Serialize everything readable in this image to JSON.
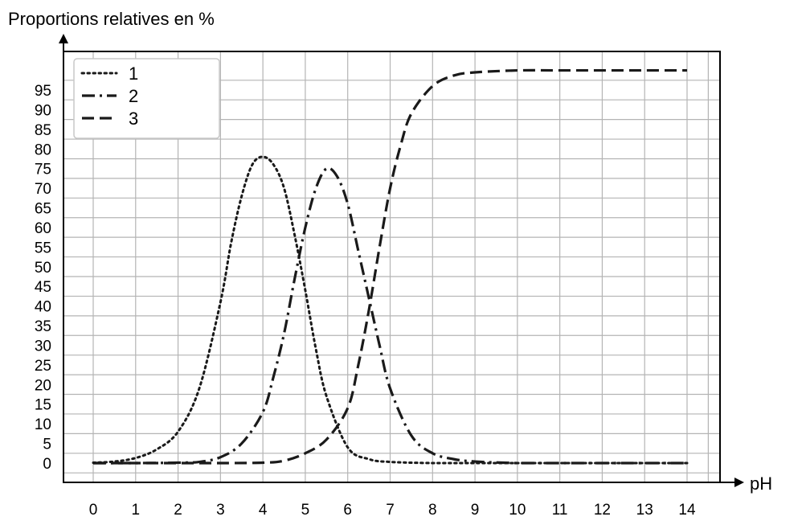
{
  "chart_data": {
    "type": "line",
    "title": "",
    "ylabel": "Proportions relatives en %",
    "xlabel": "pH",
    "xlim": [
      0,
      14
    ],
    "ylim": [
      0,
      100
    ],
    "x_ticks": [
      0,
      1,
      2,
      3,
      4,
      5,
      6,
      7,
      8,
      9,
      10,
      11,
      12,
      13,
      14
    ],
    "y_ticks": [
      0,
      5,
      10,
      15,
      20,
      25,
      30,
      35,
      40,
      45,
      50,
      55,
      60,
      65,
      70,
      75,
      80,
      85,
      90,
      95
    ],
    "grid": true,
    "legend_position": "top-left",
    "series": [
      {
        "name": "1",
        "style": "dotted",
        "x": [
          0,
          0.5,
          1,
          1.5,
          2,
          2.5,
          3,
          3.25,
          3.5,
          3.75,
          4,
          4.25,
          4.5,
          4.75,
          5,
          5.25,
          5.5,
          6,
          6.5,
          7,
          8,
          9,
          10,
          11,
          12,
          13,
          14
        ],
        "y": [
          0.1,
          0.4,
          1.3,
          3.5,
          8,
          19,
          41,
          56,
          68,
          76,
          78,
          76,
          70,
          58,
          44,
          29,
          17,
          4,
          1,
          0.3,
          0,
          0,
          0,
          0,
          0,
          0,
          0
        ]
      },
      {
        "name": "2",
        "style": "dash-dot",
        "x": [
          0,
          1,
          2,
          2.5,
          3,
          3.5,
          4,
          4.25,
          4.5,
          4.75,
          5,
          5.25,
          5.5,
          5.75,
          6,
          6.25,
          6.5,
          6.75,
          7,
          7.5,
          8,
          8.5,
          9,
          10,
          11,
          12,
          13,
          14
        ],
        "y": [
          0,
          0,
          0.1,
          0.3,
          1.5,
          5,
          13,
          22,
          33,
          47,
          60,
          70,
          75,
          73,
          66,
          54,
          42,
          30,
          19,
          7,
          2.5,
          1,
          0.4,
          0,
          0,
          0,
          0,
          0
        ]
      },
      {
        "name": "3",
        "style": "dashed",
        "x": [
          0,
          1,
          2,
          3,
          4,
          4.5,
          5,
          5.5,
          6,
          6.25,
          6.5,
          6.75,
          7,
          7.25,
          7.5,
          8,
          8.5,
          9,
          10,
          11,
          12,
          13,
          14
        ],
        "y": [
          0,
          0,
          0,
          0,
          0.1,
          0.6,
          2.5,
          6,
          14,
          25,
          39,
          55,
          70,
          81,
          89,
          96,
          98.7,
          99.5,
          100,
          100,
          100,
          100,
          100
        ]
      }
    ]
  }
}
